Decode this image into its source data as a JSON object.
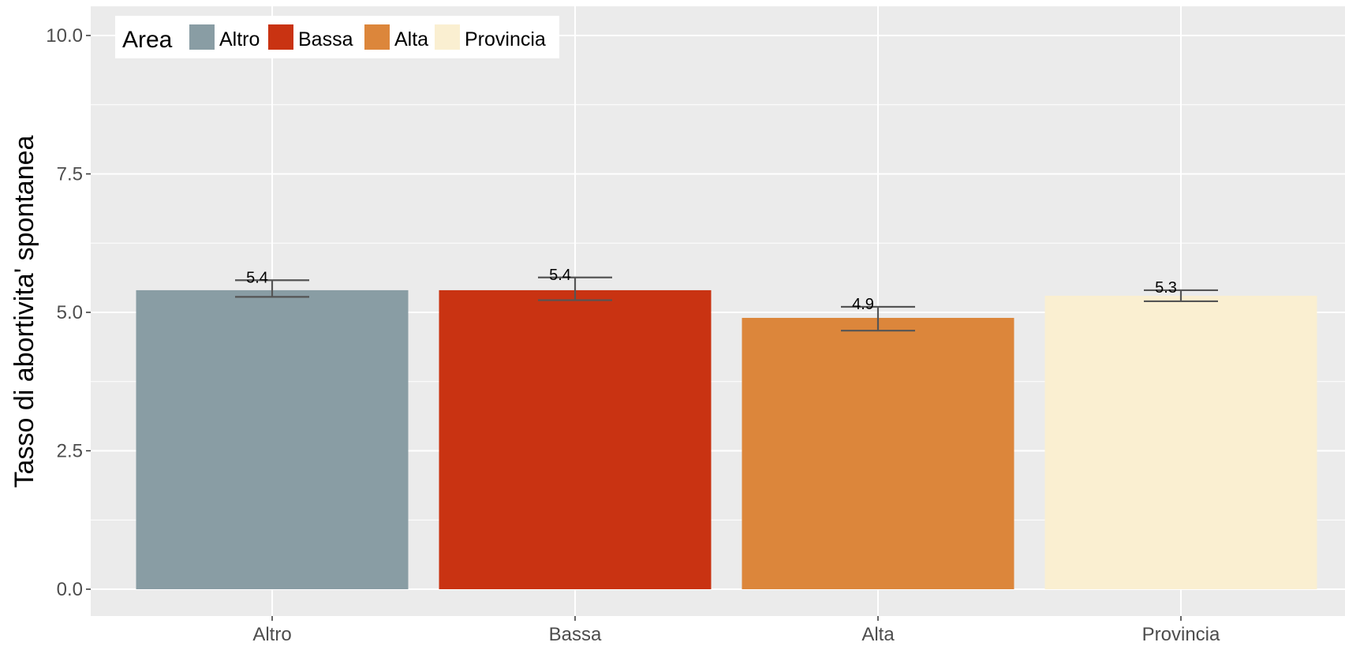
{
  "chart_data": {
    "type": "bar",
    "categories": [
      "Altro",
      "Bassa",
      "Alta",
      "Provincia"
    ],
    "values": [
      5.4,
      5.4,
      4.9,
      5.3
    ],
    "data_labels": [
      "5.4",
      "5.4",
      "4.9",
      "5.3"
    ],
    "error_bars": [
      {
        "low": 5.28,
        "high": 5.58
      },
      {
        "low": 5.22,
        "high": 5.63
      },
      {
        "low": 4.67,
        "high": 5.1
      },
      {
        "low": 5.2,
        "high": 5.4
      }
    ],
    "colors": [
      "#899da4",
      "#c93312",
      "#dc863b",
      "#faefd1"
    ],
    "ylabel": "Tasso di abortivita' spontanea",
    "xlabel": "",
    "ylim": [
      0,
      10.5
    ],
    "yticks": [
      0,
      2.5,
      5,
      7.5,
      10
    ],
    "ytick_labels": [
      "0.0",
      "2.5",
      "5.0",
      "7.5",
      "10.0"
    ],
    "grid": true,
    "legend": {
      "title": "Area",
      "position": "top-left",
      "entries": [
        "Altro",
        "Bassa",
        "Alta",
        "Provincia"
      ]
    }
  }
}
